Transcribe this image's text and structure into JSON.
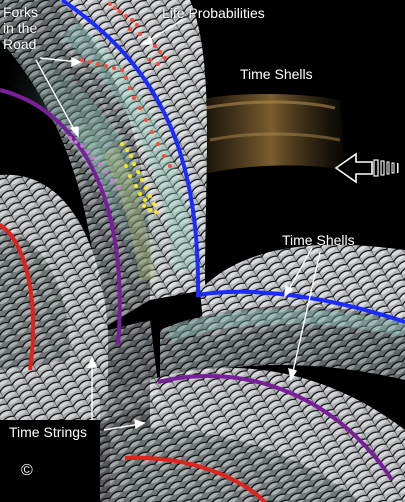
{
  "labels": {
    "forks": "Forks\nin the\nRoad",
    "life_probabilities": "Life Probabilities",
    "time_shells_top": "Time Shells",
    "time_shells_mid": "Time Shells",
    "time_strings": "Time Strings",
    "copyright": "©"
  },
  "colors": {
    "background": "#000000",
    "boundary_blue": "#1a2cff",
    "boundary_purple": "#7a1f9a",
    "boundary_red": "#e0241c",
    "dots_red": "#ff4a3a",
    "dots_yellow": "#ffe51a",
    "dots_magenta": "#e070e8",
    "shell_teal": "#7fc6b8",
    "shell_amber": "#a07a3c",
    "text": "#ffffff"
  },
  "icons": {
    "direction_arrow": "arrow-left-icon"
  }
}
